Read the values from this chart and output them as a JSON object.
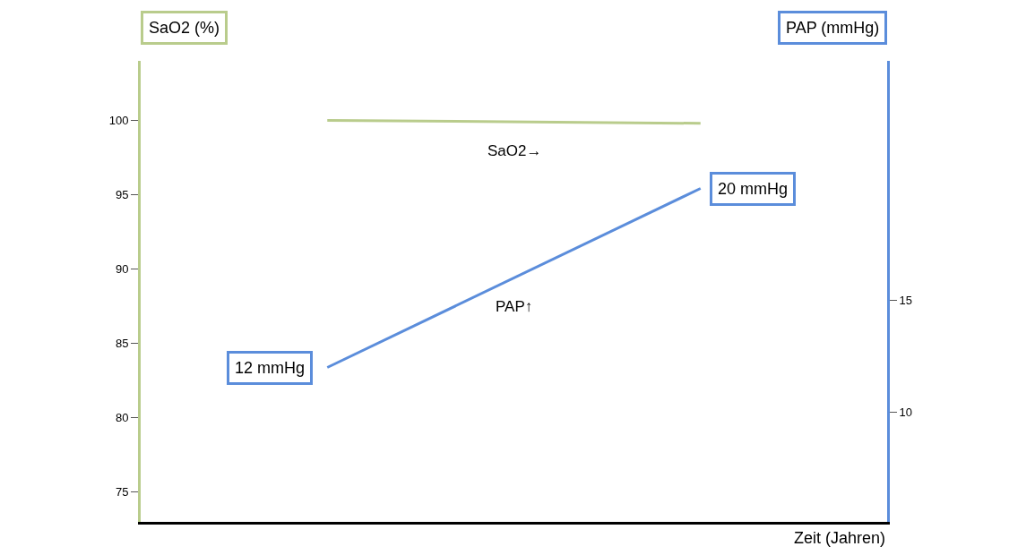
{
  "chart_data": {
    "type": "line",
    "xlabel": "Zeit (Jahren)",
    "ylabel": "SaO2 (%)",
    "y2label": "PAP (mmHg)",
    "categories": [
      null,
      null
    ],
    "series": [
      {
        "name": "SaO2→",
        "color": "#b9cc8c",
        "values": [
          100,
          99.8
        ]
      },
      {
        "name": "PAP↑",
        "color": "#5b8ddb",
        "values": [
          12,
          20
        ],
        "axis": "y2",
        "value_labels": [
          "12 mmHg",
          "20 mmHg"
        ]
      }
    ],
    "ylim": [
      73,
      104
    ],
    "yticks": [
      75,
      80,
      85,
      90,
      95,
      100
    ],
    "y2lim": [
      5.1,
      25.7
    ],
    "y2ticks": [
      10,
      15
    ],
    "legend": false,
    "marker": "none",
    "line_style": "solid"
  }
}
